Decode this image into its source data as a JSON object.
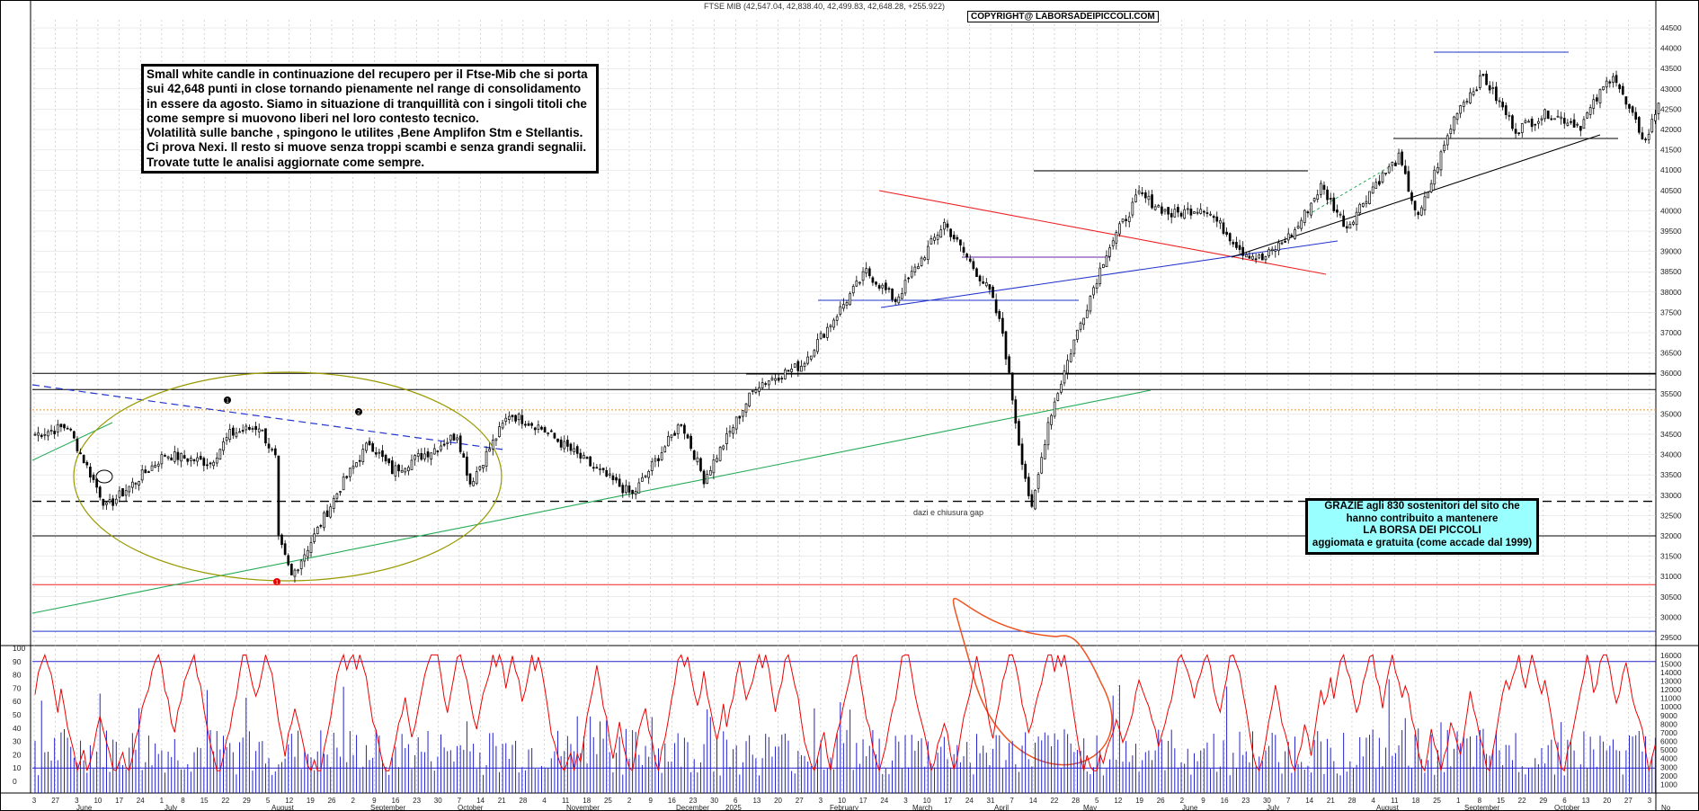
{
  "header": {
    "title": "FTSE MIB (42,547.04, 42,838.40, 42,499.83, 42,648.28, +255.922)",
    "copyright": "COPYRIGHT@ LABORSADEIPICCOLI.COM"
  },
  "note_lines": [
    "Small white candle in continuazione del recupero per il Ftse-Mib che si porta",
    "sui 42,648 punti in close tornando pienamente nel range di consolidamento",
    "in essere da agosto. Siamo in situazione di tranquillità con i singoli titoli che",
    "come sempre si muovono liberi nel loro contesto tecnico.",
    "Volatilità sulle banche , spingono le utilites ,Bene Amplifon Stm e Stellantis.",
    "Ci prova Nexi. Il resto si muove senza troppi scambi e senza grandi segnalii.",
    "Trovate tutte le analisi aggiornate come sempre."
  ],
  "thanks_lines": [
    "GRAZIE agli 830 sostenitori del sito che",
    "hanno contribuito a mantenere",
    "LA BORSA DEI PICCOLI",
    "aggiomata e gratuita (come accade dal 1999)"
  ],
  "annotation": "dazi e chiusura gap",
  "markers": [
    "1",
    "2",
    "1"
  ],
  "colors": {
    "candle": "#000000",
    "oscillator": "#ee0000",
    "volume": "#2222cc",
    "red_trend": "#ee2222",
    "blue_trend": "#2233cc",
    "green_trend": "#22aa55",
    "ellipse": "#999900",
    "orange_circle": "#ee5522",
    "dotted_level": "#ee9922",
    "highlight_box": "#99ffff"
  },
  "chart_data": {
    "type": "candlestick",
    "price_axis": {
      "ticks": [
        "44500",
        "44000",
        "43500",
        "43000",
        "42500",
        "42000",
        "41500",
        "41000",
        "40500",
        "40000",
        "39500",
        "39000",
        "38500",
        "38000",
        "37500",
        "37000",
        "36500",
        "36000",
        "35500",
        "35000",
        "34500",
        "34000",
        "33500",
        "33000",
        "32500",
        "32000",
        "31500",
        "31000",
        "30500",
        "30000",
        "29500"
      ],
      "range": [
        29300,
        44700
      ]
    },
    "oscillator_axis": {
      "ticks": [
        "100",
        "90",
        "80",
        "70",
        "60",
        "50",
        "40",
        "30",
        "20",
        "10",
        "0"
      ],
      "range": [
        0,
        100
      ]
    },
    "volume_axis": {
      "ticks": [
        "16000",
        "15000",
        "14000",
        "13000",
        "12000",
        "11000",
        "10000",
        "9000",
        "8000",
        "7000",
        "6000",
        "5000",
        "4000",
        "3000",
        "2000",
        "1000"
      ],
      "range": [
        0,
        16500
      ]
    },
    "x_day_labels": [
      "3",
      "27",
      "3",
      "10",
      "17",
      "24",
      "1",
      "8",
      "15",
      "22",
      "29",
      "5",
      "12",
      "19",
      "26",
      "2",
      "9",
      "16",
      "23",
      "30",
      "7",
      "14",
      "21",
      "28",
      "4",
      "11",
      "18",
      "25",
      "2",
      "9",
      "16",
      "23",
      "30",
      "6",
      "13",
      "20",
      "27",
      "3",
      "10",
      "17",
      "24",
      "3",
      "10",
      "17",
      "24",
      "31",
      "7",
      "14",
      "22",
      "28",
      "5",
      "12",
      "19",
      "26",
      "2",
      "9",
      "16",
      "23",
      "30",
      "7",
      "14",
      "21",
      "28",
      "4",
      "11",
      "18",
      "25",
      "1",
      "8",
      "15",
      "22",
      "29",
      "6",
      "13",
      "20",
      "27",
      "3"
    ],
    "x_month_labels": [
      "June",
      "July",
      "August",
      "September",
      "October",
      "November",
      "December",
      "2025",
      "February",
      "March",
      "April",
      "May",
      "June",
      "July",
      "August",
      "September",
      "October",
      "No"
    ],
    "ohlc_key_points": [
      {
        "pos": 0,
        "close": 34500
      },
      {
        "pos": 10,
        "close": 34700
      },
      {
        "pos": 22,
        "close": 32700
      },
      {
        "pos": 40,
        "close": 34000
      },
      {
        "pos": 54,
        "close": 33800
      },
      {
        "pos": 60,
        "close": 34500
      },
      {
        "pos": 69,
        "close": 34700
      },
      {
        "pos": 74,
        "close": 33900
      },
      {
        "pos": 75,
        "close": 31900
      },
      {
        "pos": 79,
        "close": 31000
      },
      {
        "pos": 86,
        "close": 32000
      },
      {
        "pos": 94,
        "close": 33200
      },
      {
        "pos": 103,
        "close": 34300
      },
      {
        "pos": 110,
        "close": 33600
      },
      {
        "pos": 122,
        "close": 34100
      },
      {
        "pos": 130,
        "close": 34500
      },
      {
        "pos": 134,
        "close": 33300
      },
      {
        "pos": 146,
        "close": 35000
      },
      {
        "pos": 155,
        "close": 34700
      },
      {
        "pos": 170,
        "close": 33800
      },
      {
        "pos": 184,
        "close": 33000
      },
      {
        "pos": 199,
        "close": 34800
      },
      {
        "pos": 206,
        "close": 33400
      },
      {
        "pos": 222,
        "close": 35700
      },
      {
        "pos": 236,
        "close": 36200
      },
      {
        "pos": 256,
        "close": 38500
      },
      {
        "pos": 265,
        "close": 37800
      },
      {
        "pos": 280,
        "close": 39700
      },
      {
        "pos": 294,
        "close": 38000
      },
      {
        "pos": 298,
        "close": 37000
      },
      {
        "pos": 303,
        "close": 34300
      },
      {
        "pos": 307,
        "close": 32600
      },
      {
        "pos": 312,
        "close": 34800
      },
      {
        "pos": 320,
        "close": 36800
      },
      {
        "pos": 330,
        "close": 39000
      },
      {
        "pos": 340,
        "close": 40400
      },
      {
        "pos": 350,
        "close": 39900
      },
      {
        "pos": 360,
        "close": 40100
      },
      {
        "pos": 372,
        "close": 39000
      },
      {
        "pos": 378,
        "close": 38800
      },
      {
        "pos": 388,
        "close": 39500
      },
      {
        "pos": 396,
        "close": 40600
      },
      {
        "pos": 404,
        "close": 39600
      },
      {
        "pos": 412,
        "close": 40600
      },
      {
        "pos": 420,
        "close": 41300
      },
      {
        "pos": 426,
        "close": 39800
      },
      {
        "pos": 438,
        "close": 42500
      },
      {
        "pos": 446,
        "close": 43300
      },
      {
        "pos": 456,
        "close": 42000
      },
      {
        "pos": 466,
        "close": 42400
      },
      {
        "pos": 476,
        "close": 42100
      },
      {
        "pos": 486,
        "close": 43400
      },
      {
        "pos": 490,
        "close": 42600
      },
      {
        "pos": 496,
        "close": 41700
      },
      {
        "pos": 500,
        "close": 42648
      }
    ],
    "levels": [
      {
        "value": 36000,
        "color": "#000000"
      },
      {
        "value": 35600,
        "color": "#000000"
      },
      {
        "value": 35100,
        "color": "#ee9922",
        "style": "dotted"
      },
      {
        "value": 32850,
        "color": "#000000",
        "style": "dashed"
      },
      {
        "value": 32000,
        "color": "#000000"
      },
      {
        "value": 30800,
        "color": "#ee2222"
      },
      {
        "value": 29650,
        "color": "#2233cc"
      }
    ],
    "title": "FTSE MIB (42,547.04, 42,838.40, 42,499.83, 42,648.28, +255.922)",
    "xlabel": "",
    "ylabel": ""
  }
}
